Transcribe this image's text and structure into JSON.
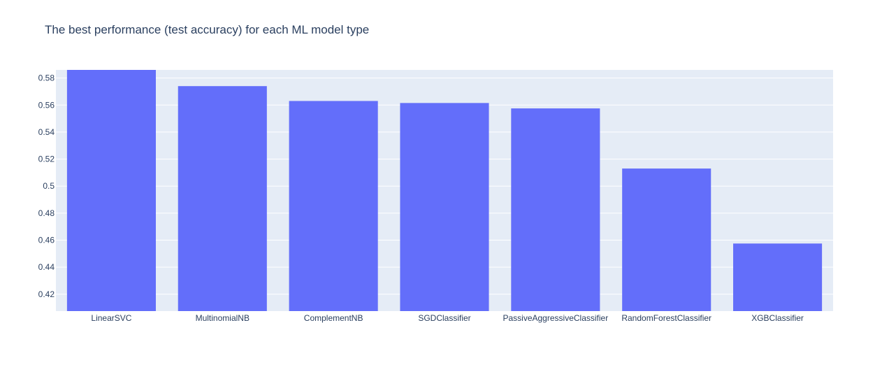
{
  "colors": {
    "plot_bg": "#e5ecf6",
    "grid": "#ffffff",
    "bar": "#636efa",
    "text": "#2a3f5f"
  },
  "chart_data": {
    "type": "bar",
    "title": "The best performance (test accuracy) for each ML model type",
    "xlabel": "",
    "ylabel": "",
    "categories": [
      "LinearSVC",
      "MultinomialNB",
      "ComplementNB",
      "SGDClassifier",
      "PassiveAggressiveClassifier",
      "RandomForestClassifier",
      "XGBClassifier"
    ],
    "values": [
      0.586,
      0.574,
      0.563,
      0.5615,
      0.5575,
      0.513,
      0.4575
    ],
    "ylim": [
      0.4075,
      0.586
    ],
    "yticks": [
      0.42,
      0.44,
      0.46,
      0.48,
      0.5,
      0.52,
      0.54,
      0.56,
      0.58
    ],
    "ytick_labels": [
      "0.42",
      "0.44",
      "0.46",
      "0.48",
      "0.5",
      "0.52",
      "0.54",
      "0.56",
      "0.58"
    ],
    "grid": true,
    "legend": "none"
  }
}
